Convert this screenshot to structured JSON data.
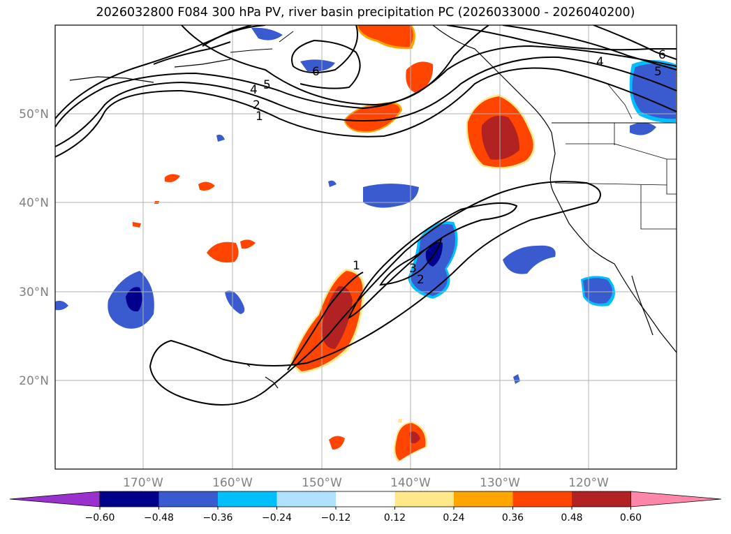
{
  "title": "2026032800 F084 300 hPa PV, river basin precipitation PC (2026033000 - 2026040200)",
  "lat_labels": [
    "50°N",
    "40°N",
    "30°N",
    "20°N"
  ],
  "lon_labels": [
    "170°W",
    "160°W",
    "150°W",
    "140°W",
    "130°W",
    "120°W"
  ],
  "pv_contour_labels": [
    "6",
    "5",
    "4",
    "2",
    "1",
    "1",
    "2",
    "3",
    "4",
    "5",
    "6"
  ],
  "colorbar": {
    "tick_labels": [
      "−0.60",
      "−0.48",
      "−0.36",
      "−0.24",
      "−0.12",
      "0.12",
      "0.24",
      "0.36",
      "0.48",
      "0.60"
    ],
    "colors": [
      "#9932cc",
      "#00008b",
      "#3a5bd0",
      "#00bfff",
      "#b0e2ff",
      "#ffffff",
      "#ffe88a",
      "#ffa500",
      "#ff4500",
      "#b22222",
      "#ff88aa"
    ]
  },
  "map_extent": {
    "lon": [
      -180,
      -110
    ],
    "lat": [
      10,
      60
    ]
  }
}
